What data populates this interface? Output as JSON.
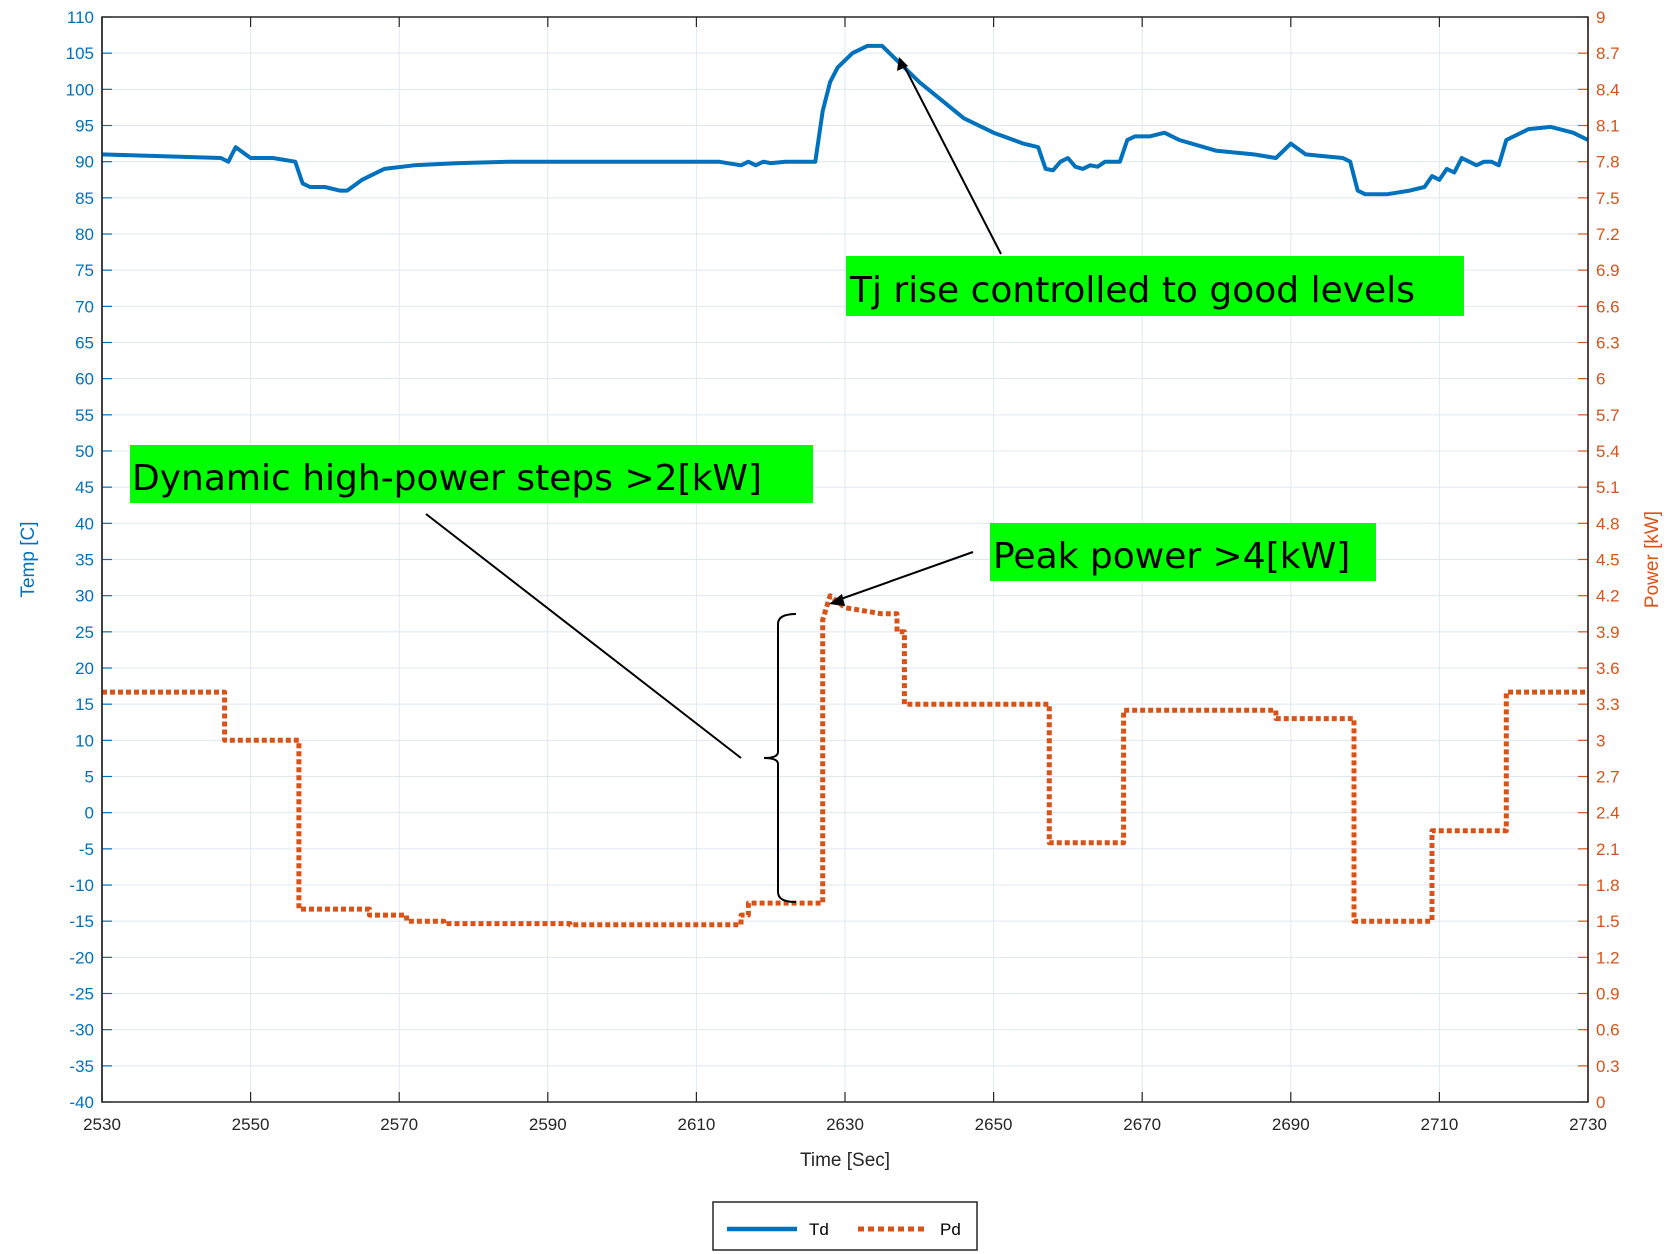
{
  "chart_data": {
    "type": "line",
    "title": "",
    "xlabel": "Time [Sec]",
    "ylabel_left": "Temp [C]",
    "ylabel_right": "Power [kW]",
    "xlim": [
      2530,
      2730
    ],
    "ylim_left": [
      -40,
      110
    ],
    "ylim_right": [
      0,
      9
    ],
    "grid": true,
    "legend_position": "bottom-center",
    "x_ticks": [
      2530,
      2550,
      2570,
      2590,
      2610,
      2630,
      2650,
      2670,
      2690,
      2710,
      2730
    ],
    "y_left_ticks": [
      -40,
      -35,
      -30,
      -25,
      -20,
      -15,
      -10,
      -5,
      0,
      5,
      10,
      15,
      20,
      25,
      30,
      35,
      40,
      45,
      50,
      55,
      60,
      65,
      70,
      75,
      80,
      85,
      90,
      95,
      100,
      105,
      110
    ],
    "y_right_ticks": [
      "0",
      "0.3",
      "0.6",
      "0.9",
      "1.2",
      "1.5",
      "1.8",
      "2.1",
      "2.4",
      "2.7",
      "3",
      "3.3",
      "3.6",
      "3.9",
      "4.2",
      "4.5",
      "4.8",
      "5.1",
      "5.4",
      "5.7",
      "6",
      "6.3",
      "6.6",
      "6.9",
      "7.2",
      "7.5",
      "7.8",
      "8.1",
      "8.4",
      "8.7",
      "9"
    ],
    "colors": {
      "Td": "#0072bd",
      "Pd": "#d95319",
      "annotation_bg": "#00ff00"
    },
    "series": [
      {
        "name": "Td",
        "axis": "left",
        "style": "solid",
        "x": [
          2530,
          2546,
          2547,
          2548,
          2550,
          2553,
          2556,
          2557,
          2558,
          2560,
          2562,
          2563,
          2565,
          2568,
          2572,
          2578,
          2585,
          2595,
          2605,
          2613,
          2616,
          2617,
          2618,
          2619,
          2620,
          2622,
          2624,
          2626,
          2627,
          2628,
          2629,
          2631,
          2633,
          2635,
          2637,
          2638,
          2640,
          2643,
          2646,
          2650,
          2654,
          2656,
          2657,
          2658,
          2659,
          2660,
          2661,
          2662,
          2663,
          2664,
          2665,
          2666,
          2667,
          2668,
          2669,
          2671,
          2673,
          2675,
          2680,
          2685,
          2688,
          2689,
          2690,
          2692,
          2694,
          2697,
          2698,
          2699,
          2700,
          2703,
          2706,
          2708,
          2709,
          2710,
          2711,
          2712,
          2713,
          2715,
          2716,
          2717,
          2718,
          2719,
          2722,
          2725,
          2728,
          2730
        ],
        "values": [
          91,
          90.5,
          90,
          92,
          90.5,
          90.5,
          90,
          87,
          86.5,
          86.5,
          86,
          86,
          87.5,
          89,
          89.5,
          89.8,
          90,
          90,
          90,
          90,
          89.5,
          90,
          89.5,
          90,
          89.8,
          90,
          90,
          90,
          97,
          101,
          103,
          105,
          106,
          106,
          104,
          103,
          101,
          98.5,
          96,
          94,
          92.5,
          92,
          89,
          88.8,
          90,
          90.5,
          89.3,
          89,
          89.5,
          89.3,
          90,
          90,
          90,
          93,
          93.5,
          93.5,
          94,
          93,
          91.5,
          91,
          90.5,
          91.5,
          92.5,
          91,
          90.8,
          90.5,
          90,
          86,
          85.5,
          85.5,
          86,
          86.5,
          88,
          87.5,
          89,
          88.5,
          90.5,
          89.5,
          90,
          90,
          89.5,
          93,
          94.5,
          94.8,
          94,
          93
        ]
      },
      {
        "name": "Pd",
        "axis": "right",
        "style": "dotted",
        "x": [
          2530,
          2546.5,
          2546.5,
          2556.5,
          2556.5,
          2566,
          2566,
          2571,
          2571,
          2576,
          2576,
          2593,
          2593,
          2616,
          2616,
          2617,
          2617,
          2627,
          2627,
          2628,
          2630,
          2635,
          2637,
          2637,
          2638,
          2638,
          2657.5,
          2657.5,
          2667.5,
          2667.5,
          2688,
          2688,
          2698.5,
          2698.5,
          2709,
          2709,
          2719,
          2719,
          2730
        ],
        "values": [
          3.4,
          3.4,
          3.0,
          3.0,
          1.6,
          1.6,
          1.55,
          1.55,
          1.5,
          1.5,
          1.48,
          1.48,
          1.47,
          1.47,
          1.55,
          1.55,
          1.65,
          1.65,
          4.0,
          4.2,
          4.1,
          4.05,
          4.05,
          3.9,
          3.9,
          3.3,
          3.3,
          2.15,
          2.15,
          3.25,
          3.25,
          3.18,
          3.18,
          1.5,
          1.5,
          2.25,
          2.25,
          3.4,
          3.4
        ]
      }
    ],
    "annotations": [
      {
        "text": "Tj rise controlled to good levels"
      },
      {
        "text": "Dynamic high-power steps >2[kW]"
      },
      {
        "text": "Peak power >4[kW]"
      }
    ],
    "legend": [
      "Td",
      "Pd"
    ]
  }
}
